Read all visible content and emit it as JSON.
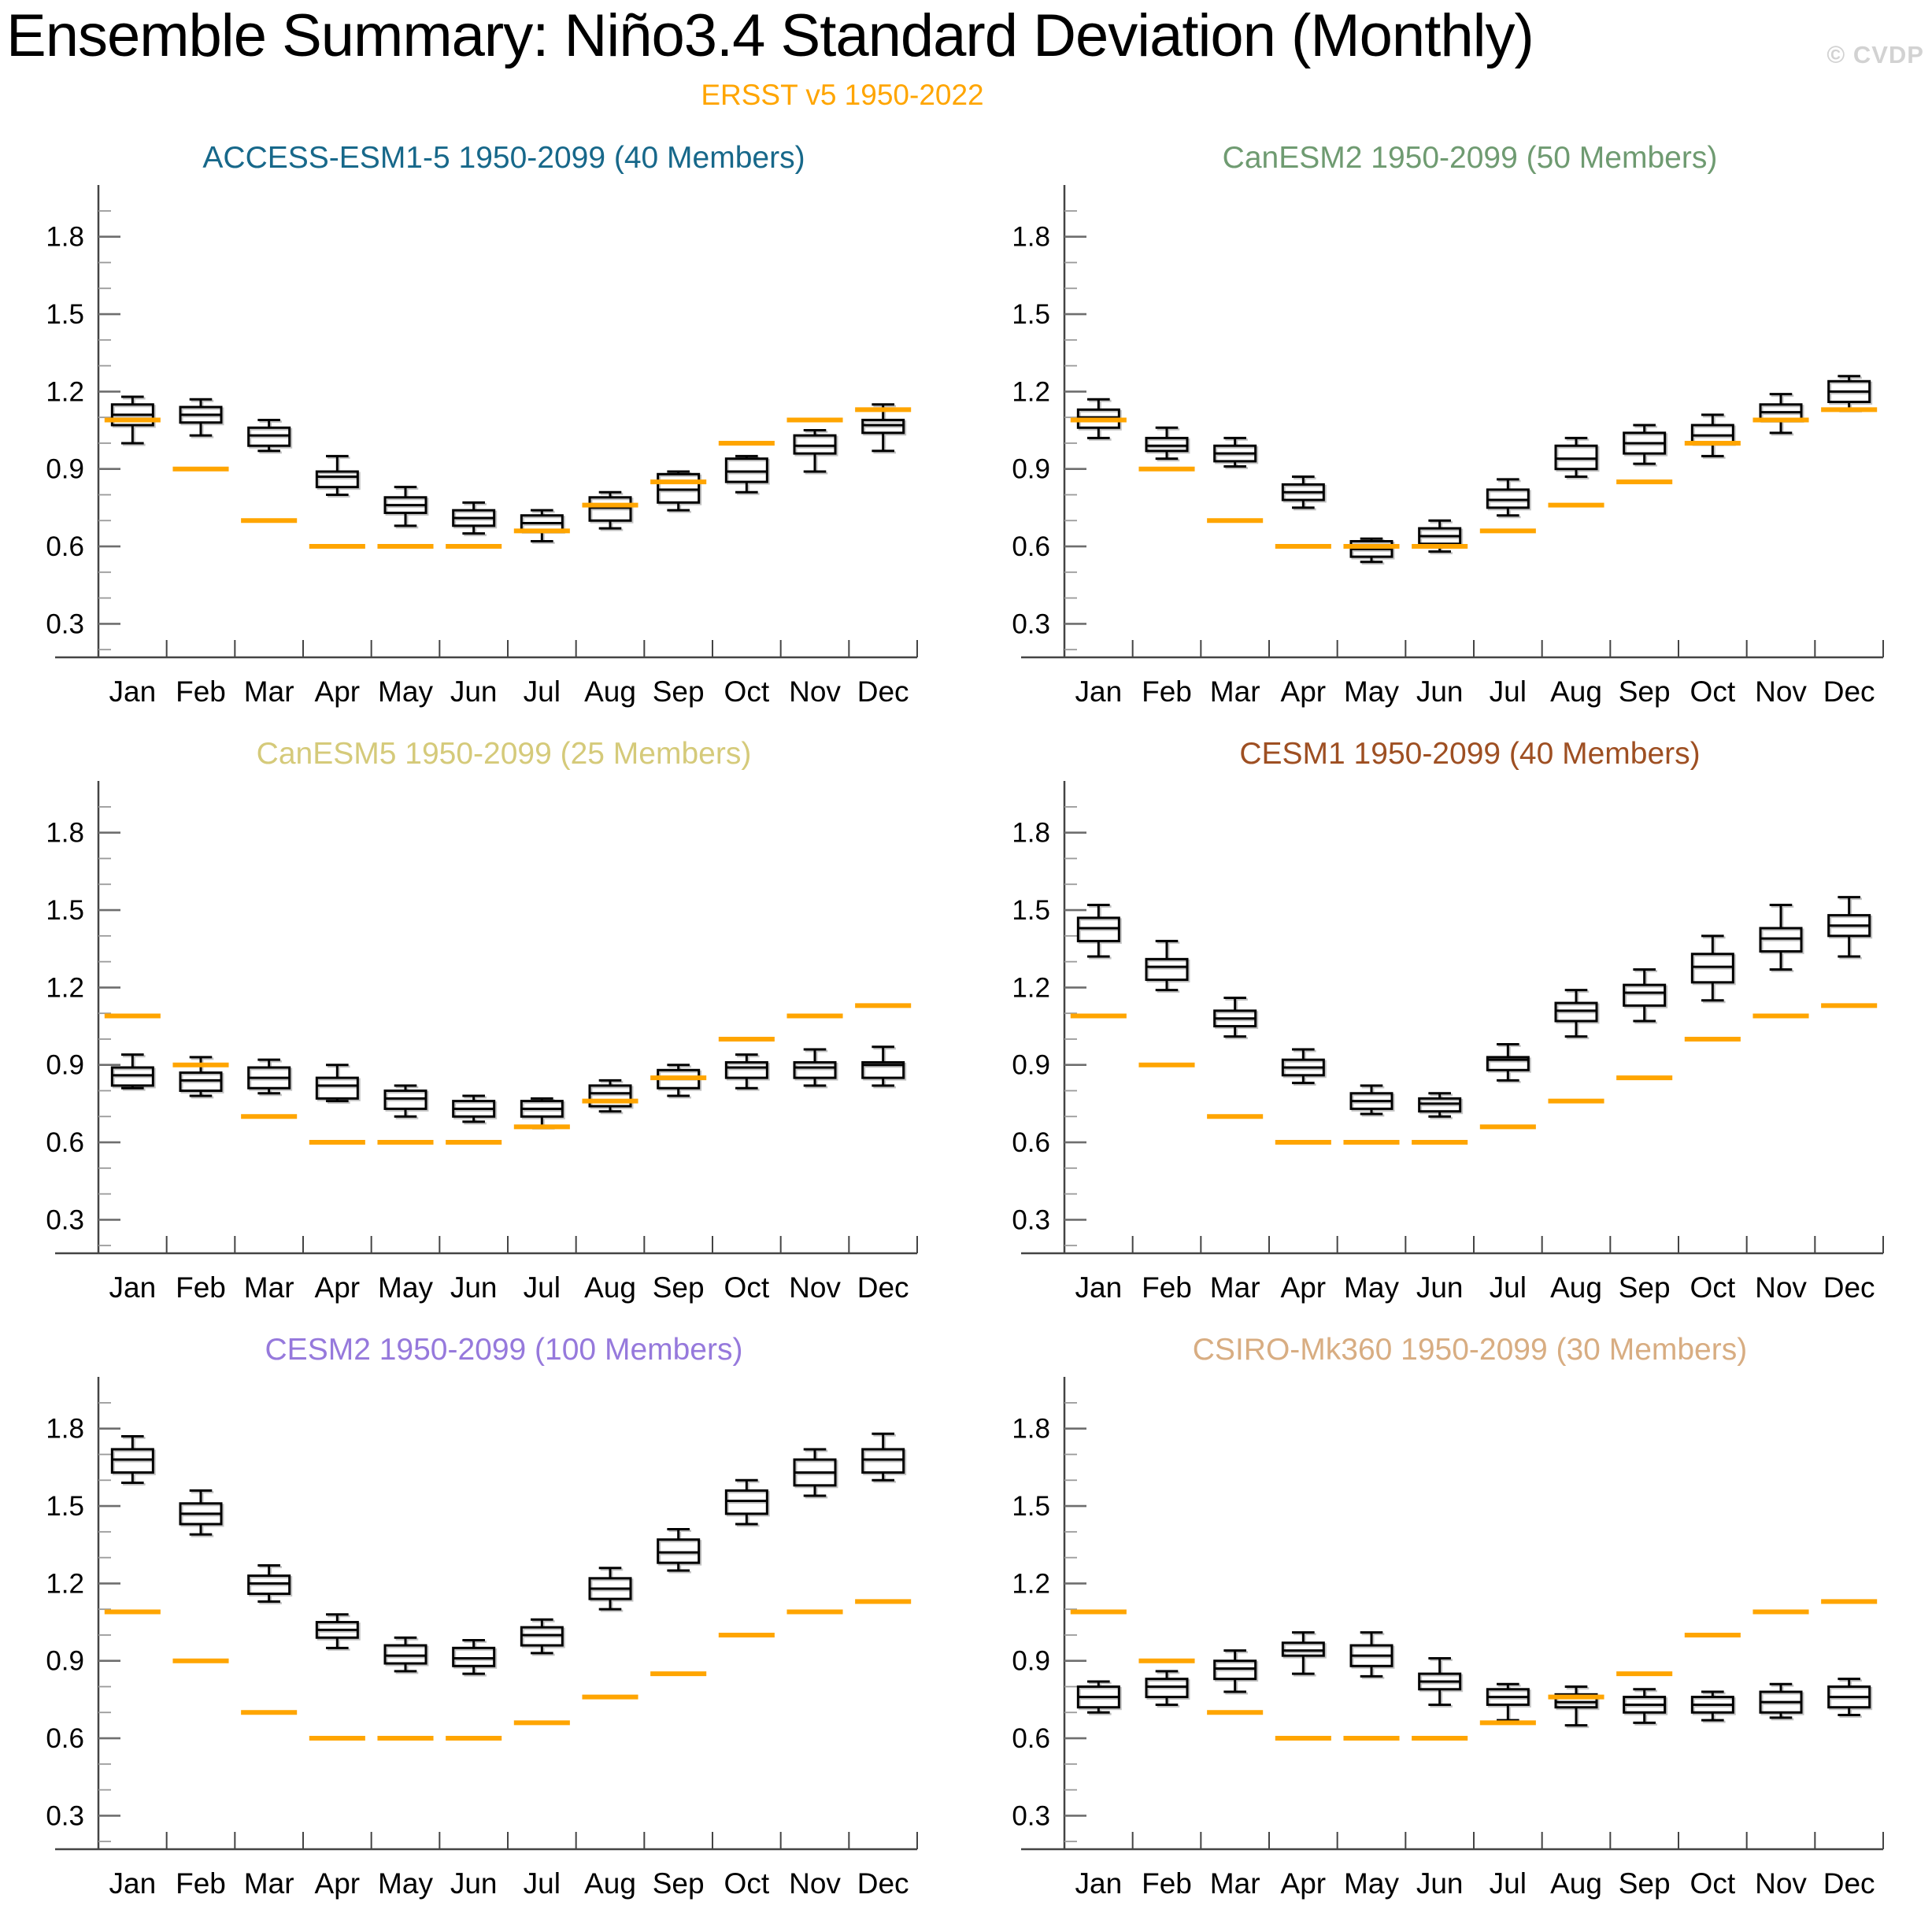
{
  "header": {
    "title": "Ensemble Summary: Niño3.4 Standard Deviation (Monthly)",
    "subtitle": "ERSST v5 1950-2022",
    "watermark": "© CVDP",
    "subtitle_color": "#FFA500"
  },
  "chart_data": {
    "type": "boxplot",
    "months": [
      "Jan",
      "Feb",
      "Mar",
      "Apr",
      "May",
      "Jun",
      "Jul",
      "Aug",
      "Sep",
      "Oct",
      "Nov",
      "Dec"
    ],
    "y_axis": {
      "major_ticks": [
        0.3,
        0.6,
        0.9,
        1.2,
        1.5,
        1.8
      ],
      "minor_step": 0.1,
      "range": [
        0.17,
        1.97
      ],
      "grid": false
    },
    "observed": {
      "label": "ERSST v5 1950-2022",
      "color": "#FFA500",
      "values": [
        1.09,
        0.9,
        0.7,
        0.6,
        0.6,
        0.6,
        0.66,
        0.76,
        0.85,
        1.0,
        1.09,
        1.13
      ]
    },
    "box_style": {
      "stroke": "#000000",
      "whisker_cap_ratio": 0.55
    },
    "panels": [
      {
        "title": "ACCESS-ESM1-5 1950-2099 (40 Members)",
        "color": "#17688a",
        "boxes": [
          [
            1.0,
            1.07,
            1.11,
            1.15,
            1.18
          ],
          [
            1.03,
            1.08,
            1.11,
            1.14,
            1.17
          ],
          [
            0.97,
            0.99,
            1.03,
            1.06,
            1.09
          ],
          [
            0.8,
            0.83,
            0.87,
            0.89,
            0.95
          ],
          [
            0.68,
            0.73,
            0.76,
            0.79,
            0.83
          ],
          [
            0.65,
            0.68,
            0.71,
            0.74,
            0.77
          ],
          [
            0.62,
            0.66,
            0.69,
            0.72,
            0.74
          ],
          [
            0.67,
            0.7,
            0.75,
            0.79,
            0.81
          ],
          [
            0.74,
            0.77,
            0.82,
            0.88,
            0.89
          ],
          [
            0.81,
            0.85,
            0.89,
            0.94,
            0.95
          ],
          [
            0.89,
            0.96,
            0.99,
            1.03,
            1.05
          ],
          [
            0.97,
            1.04,
            1.07,
            1.09,
            1.15
          ]
        ]
      },
      {
        "title": "CanESM2 1950-2099 (50 Members)",
        "color": "#6f9b71",
        "boxes": [
          [
            1.02,
            1.06,
            1.1,
            1.13,
            1.17
          ],
          [
            0.94,
            0.97,
            0.99,
            1.02,
            1.06
          ],
          [
            0.91,
            0.93,
            0.96,
            0.99,
            1.02
          ],
          [
            0.75,
            0.78,
            0.81,
            0.84,
            0.87
          ],
          [
            0.54,
            0.56,
            0.59,
            0.62,
            0.63
          ],
          [
            0.58,
            0.61,
            0.64,
            0.67,
            0.7
          ],
          [
            0.72,
            0.75,
            0.78,
            0.82,
            0.86
          ],
          [
            0.87,
            0.9,
            0.94,
            0.99,
            1.02
          ],
          [
            0.92,
            0.96,
            1.0,
            1.04,
            1.07
          ],
          [
            0.95,
            1.0,
            1.03,
            1.07,
            1.11
          ],
          [
            1.04,
            1.09,
            1.12,
            1.15,
            1.19
          ],
          [
            1.13,
            1.16,
            1.2,
            1.24,
            1.26
          ]
        ]
      },
      {
        "title": "CanESM5 1950-2099 (25 Members)",
        "color": "#d5ca7a",
        "boxes": [
          [
            0.81,
            0.82,
            0.86,
            0.89,
            0.94
          ],
          [
            0.78,
            0.8,
            0.84,
            0.87,
            0.93
          ],
          [
            0.79,
            0.81,
            0.85,
            0.89,
            0.92
          ],
          [
            0.76,
            0.77,
            0.82,
            0.85,
            0.9
          ],
          [
            0.7,
            0.73,
            0.77,
            0.8,
            0.82
          ],
          [
            0.68,
            0.7,
            0.73,
            0.76,
            0.78
          ],
          [
            0.66,
            0.7,
            0.73,
            0.76,
            0.77
          ],
          [
            0.72,
            0.74,
            0.79,
            0.82,
            0.84
          ],
          [
            0.78,
            0.81,
            0.85,
            0.88,
            0.9
          ],
          [
            0.81,
            0.85,
            0.89,
            0.91,
            0.94
          ],
          [
            0.82,
            0.85,
            0.89,
            0.91,
            0.96
          ],
          [
            0.82,
            0.85,
            0.9,
            0.91,
            0.97
          ]
        ]
      },
      {
        "title": "CESM1 1950-2099 (40 Members)",
        "color": "#9e4f22",
        "boxes": [
          [
            1.32,
            1.38,
            1.43,
            1.47,
            1.52
          ],
          [
            1.19,
            1.23,
            1.28,
            1.31,
            1.38
          ],
          [
            1.01,
            1.05,
            1.08,
            1.11,
            1.16
          ],
          [
            0.83,
            0.86,
            0.89,
            0.92,
            0.96
          ],
          [
            0.71,
            0.73,
            0.76,
            0.79,
            0.82
          ],
          [
            0.7,
            0.72,
            0.75,
            0.77,
            0.79
          ],
          [
            0.84,
            0.88,
            0.92,
            0.93,
            0.98
          ],
          [
            1.01,
            1.07,
            1.11,
            1.14,
            1.19
          ],
          [
            1.07,
            1.13,
            1.18,
            1.21,
            1.27
          ],
          [
            1.15,
            1.22,
            1.28,
            1.33,
            1.4
          ],
          [
            1.27,
            1.34,
            1.39,
            1.43,
            1.52
          ],
          [
            1.32,
            1.4,
            1.44,
            1.48,
            1.55
          ]
        ]
      },
      {
        "title": "CESM2 1950-2099 (100 Members)",
        "color": "#9679dc",
        "boxes": [
          [
            1.59,
            1.63,
            1.68,
            1.72,
            1.77
          ],
          [
            1.39,
            1.43,
            1.47,
            1.51,
            1.56
          ],
          [
            1.13,
            1.16,
            1.2,
            1.23,
            1.27
          ],
          [
            0.95,
            0.99,
            1.02,
            1.05,
            1.08
          ],
          [
            0.86,
            0.89,
            0.92,
            0.96,
            0.99
          ],
          [
            0.85,
            0.88,
            0.91,
            0.95,
            0.98
          ],
          [
            0.93,
            0.96,
            1.0,
            1.03,
            1.06
          ],
          [
            1.1,
            1.14,
            1.18,
            1.22,
            1.26
          ],
          [
            1.25,
            1.28,
            1.32,
            1.37,
            1.41
          ],
          [
            1.43,
            1.47,
            1.52,
            1.56,
            1.6
          ],
          [
            1.54,
            1.58,
            1.63,
            1.68,
            1.72
          ],
          [
            1.6,
            1.63,
            1.68,
            1.72,
            1.78
          ]
        ]
      },
      {
        "title": "CSIRO-Mk360 1950-2099 (30 Members)",
        "color": "#d8ad82",
        "boxes": [
          [
            0.7,
            0.72,
            0.76,
            0.8,
            0.82
          ],
          [
            0.73,
            0.76,
            0.8,
            0.83,
            0.86
          ],
          [
            0.78,
            0.83,
            0.87,
            0.9,
            0.94
          ],
          [
            0.85,
            0.92,
            0.94,
            0.97,
            1.01
          ],
          [
            0.84,
            0.88,
            0.92,
            0.96,
            1.01
          ],
          [
            0.73,
            0.79,
            0.82,
            0.85,
            0.91
          ],
          [
            0.67,
            0.73,
            0.76,
            0.79,
            0.81
          ],
          [
            0.65,
            0.72,
            0.74,
            0.77,
            0.8
          ],
          [
            0.66,
            0.7,
            0.73,
            0.76,
            0.79
          ],
          [
            0.67,
            0.7,
            0.73,
            0.76,
            0.78
          ],
          [
            0.68,
            0.7,
            0.74,
            0.78,
            0.81
          ],
          [
            0.69,
            0.72,
            0.76,
            0.8,
            0.83
          ]
        ]
      }
    ]
  }
}
